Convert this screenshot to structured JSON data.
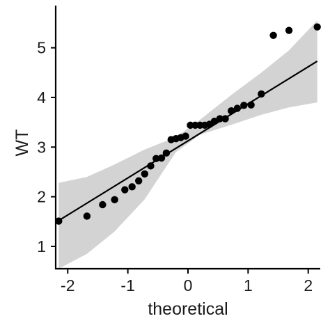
{
  "chart_data": {
    "type": "scatter",
    "title": "",
    "xlabel": "theoretical",
    "ylabel": "WT",
    "xlim": [
      -2.2,
      2.2
    ],
    "ylim": [
      0.55,
      5.85
    ],
    "x_ticks": [
      -2,
      -1,
      0,
      1,
      2
    ],
    "x_tick_labels": [
      "-2",
      "-1",
      "0",
      "1",
      "2"
    ],
    "y_ticks": [
      1,
      2,
      3,
      4,
      5
    ],
    "y_tick_labels": [
      "1",
      "2",
      "3",
      "4",
      "5"
    ],
    "grid": false,
    "legend": "none",
    "points": {
      "x": [
        -2.15,
        -1.68,
        -1.42,
        -1.22,
        -1.05,
        -0.93,
        -0.82,
        -0.72,
        -0.62,
        -0.53,
        -0.44,
        -0.36,
        -0.28,
        -0.2,
        -0.12,
        -0.04,
        0.04,
        0.12,
        0.2,
        0.28,
        0.36,
        0.44,
        0.53,
        0.62,
        0.72,
        0.82,
        0.93,
        1.05,
        1.22,
        1.42,
        1.68,
        2.15
      ],
      "y": [
        1.51,
        1.61,
        1.84,
        1.94,
        2.14,
        2.2,
        2.32,
        2.46,
        2.62,
        2.77,
        2.78,
        2.88,
        3.15,
        3.17,
        3.19,
        3.22,
        3.44,
        3.44,
        3.44,
        3.44,
        3.46,
        3.52,
        3.57,
        3.57,
        3.73,
        3.78,
        3.84,
        3.85,
        4.07,
        5.25,
        5.35,
        5.42
      ]
    },
    "reference_line": {
      "x": [
        -2.15,
        2.15
      ],
      "y": [
        1.52,
        4.73
      ]
    },
    "confidence_band": {
      "x": [
        -2.15,
        -1.68,
        -1.22,
        -0.72,
        -0.2,
        0.2,
        0.72,
        1.22,
        1.68,
        2.15
      ],
      "lower": [
        0.55,
        0.85,
        1.3,
        1.95,
        2.9,
        3.25,
        3.45,
        3.65,
        3.8,
        3.9
      ],
      "upper": [
        2.28,
        2.4,
        2.65,
        2.95,
        3.2,
        3.55,
        4.05,
        4.5,
        4.95,
        5.55
      ]
    },
    "colors": {
      "points": "#000000",
      "line": "#000000",
      "band": "#d3d3d3",
      "axis": "#000000"
    }
  }
}
